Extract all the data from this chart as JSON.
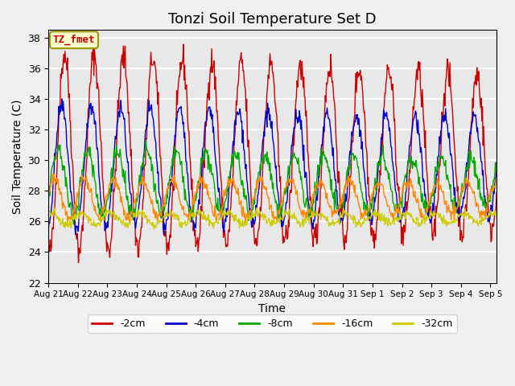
{
  "title": "Tonzi Soil Temperature Set D",
  "xlabel": "Time",
  "ylabel": "Soil Temperature (C)",
  "ylim": [
    22,
    38.5
  ],
  "x_tick_labels": [
    "Aug 21",
    "Aug 22",
    "Aug 23",
    "Aug 24",
    "Aug 25",
    "Aug 26",
    "Aug 27",
    "Aug 28",
    "Aug 29",
    "Aug 30",
    "Aug 31",
    "Sep 1",
    "Sep 2",
    "Sep 3",
    "Sep 4",
    "Sep 5"
  ],
  "series_colors": [
    "#cc0000",
    "#0000cc",
    "#00aa00",
    "#ff8800",
    "#cccc00"
  ],
  "series_labels": [
    "-2cm",
    "-4cm",
    "-8cm",
    "-16cm",
    "-32cm"
  ],
  "legend_label": "TZ_fmet",
  "legend_label_color": "#cc0000",
  "legend_box_facecolor": "#ffffcc",
  "legend_box_edgecolor": "#999900",
  "axes_facecolor": "#e8e8e8",
  "fig_facecolor": "#f0f0f0",
  "grid_color": "#ffffff",
  "title_fontsize": 13,
  "n_points": 745,
  "n_hours": 372
}
